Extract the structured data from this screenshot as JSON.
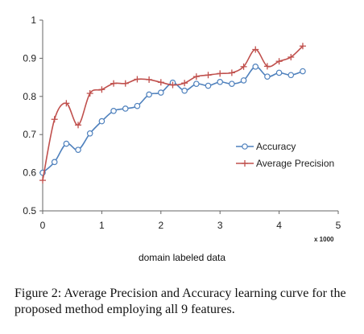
{
  "chart_data": {
    "type": "line",
    "x": [
      0.0,
      0.2,
      0.4,
      0.6,
      0.8,
      1.0,
      1.2,
      1.4,
      1.6,
      1.8,
      2.0,
      2.2,
      2.4,
      2.6,
      2.8,
      3.0,
      3.2,
      3.4,
      3.6,
      3.8,
      4.0,
      4.2,
      4.4
    ],
    "series": [
      {
        "name": "Accuracy",
        "color": "#4f81bd",
        "marker": "circle",
        "values": [
          0.6,
          0.628,
          0.676,
          0.66,
          0.703,
          0.735,
          0.762,
          0.768,
          0.775,
          0.805,
          0.81,
          0.836,
          0.815,
          0.833,
          0.828,
          0.838,
          0.833,
          0.842,
          0.878,
          0.852,
          0.862,
          0.856,
          0.866
        ]
      },
      {
        "name": "Average Precision",
        "color": "#c0504d",
        "marker": "plus",
        "values": [
          0.58,
          0.74,
          0.782,
          0.725,
          0.808,
          0.818,
          0.834,
          0.834,
          0.845,
          0.844,
          0.837,
          0.83,
          0.835,
          0.852,
          0.856,
          0.86,
          0.862,
          0.878,
          0.923,
          0.879,
          0.892,
          0.903,
          0.932
        ]
      }
    ],
    "xlim": [
      0,
      5
    ],
    "ylim": [
      0.5,
      1.0
    ],
    "xticks": [
      "0",
      "1",
      "2",
      "3",
      "4",
      "5"
    ],
    "yticks": [
      "0.5",
      "0.6",
      "0.7",
      "0.8",
      "0.9",
      "1"
    ],
    "x_multiplier": "x 1000",
    "xlabel": "domain labeled data",
    "ylabel": "",
    "legend_position": "right"
  },
  "caption": "Figure 2: Average Precision and Accuracy learning curve for the proposed method employing all 9 features."
}
